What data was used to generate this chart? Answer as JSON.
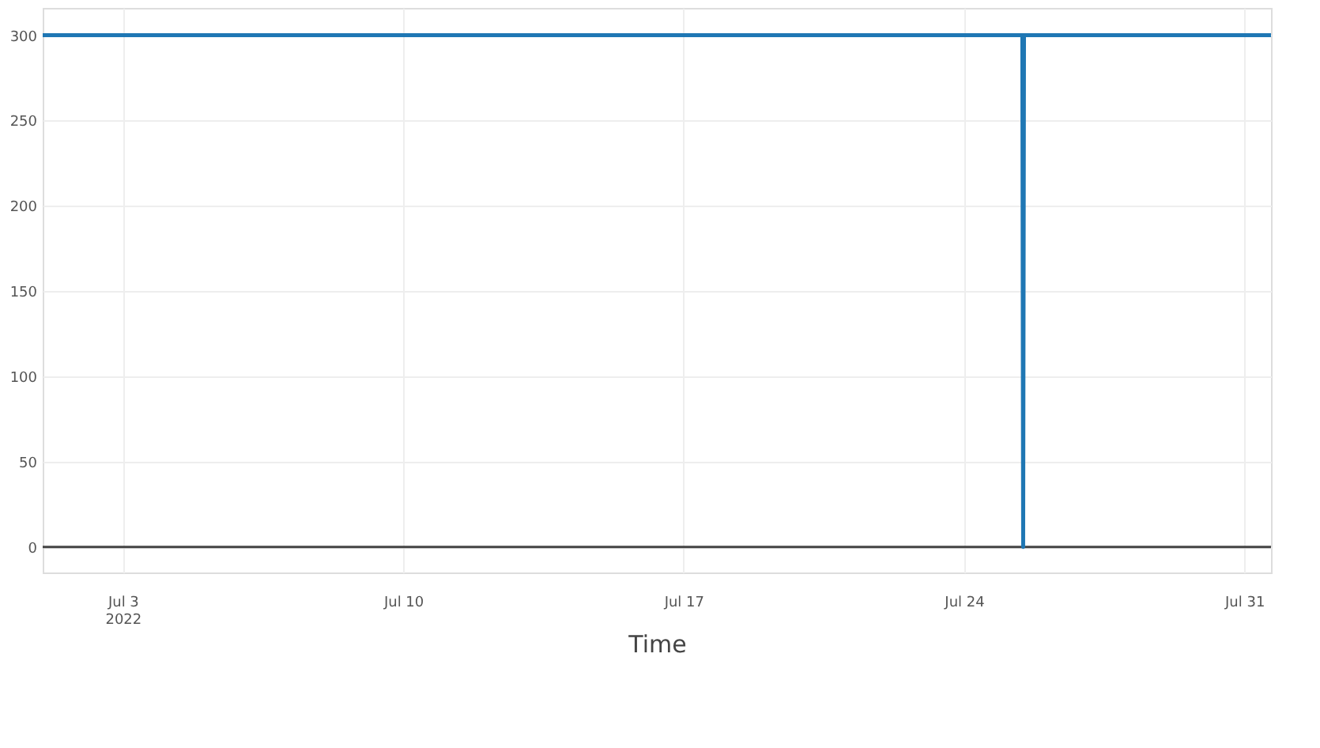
{
  "chart_data": {
    "type": "line",
    "xlabel": "Time",
    "x": [
      "2022-07-01",
      "2022-07-25T11:00",
      "2022-07-25T11:30",
      "2022-07-25T12:00",
      "2022-07-31T16:00"
    ],
    "series": [
      {
        "color": "#1f77b4",
        "values": [
          300,
          300,
          0,
          300,
          300
        ]
      }
    ],
    "xlim": [
      "2022-07-01",
      "2022-07-31T16:00"
    ],
    "xticks": [
      {
        "value": "2022-07-03",
        "label": "Jul 3\n2022"
      },
      {
        "value": "2022-07-10",
        "label": "Jul 10"
      },
      {
        "value": "2022-07-17",
        "label": "Jul 17"
      },
      {
        "value": "2022-07-24",
        "label": "Jul 24"
      },
      {
        "value": "2022-07-31",
        "label": "Jul 31"
      }
    ],
    "ylim": [
      -15,
      316
    ],
    "yticks": [
      0,
      50,
      100,
      150,
      200,
      250,
      300
    ],
    "ref_lines": [
      {
        "axis": "y",
        "value": 0,
        "color": "#444444"
      }
    ],
    "grid": true,
    "line_style": "solid",
    "marker": "none"
  }
}
